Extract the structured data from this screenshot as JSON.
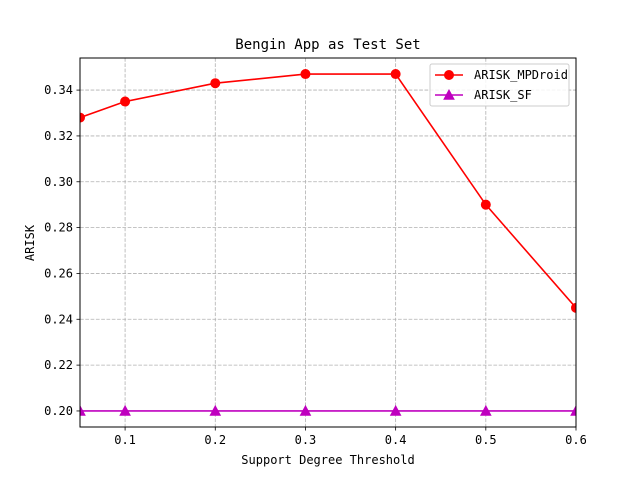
{
  "chart_data": {
    "type": "line",
    "title": "Bengin App as Test Set",
    "xlabel": "Support Degree Threshold",
    "ylabel": "ARISK",
    "x": [
      0.05,
      0.1,
      0.2,
      0.3,
      0.4,
      0.5,
      0.6
    ],
    "xlim": [
      0.05,
      0.6
    ],
    "ylim": [
      0.193,
      0.354
    ],
    "xticks": [
      0.1,
      0.2,
      0.3,
      0.4,
      0.5,
      0.6
    ],
    "xtick_labels": [
      "0.1",
      "0.2",
      "0.3",
      "0.4",
      "0.5",
      "0.6"
    ],
    "yticks": [
      0.2,
      0.22,
      0.24,
      0.26,
      0.28,
      0.3,
      0.32,
      0.34
    ],
    "ytick_labels": [
      "0.20",
      "0.22",
      "0.24",
      "0.26",
      "0.28",
      "0.30",
      "0.32",
      "0.34"
    ],
    "grid": true,
    "legend_position": "top-right",
    "series": [
      {
        "name": "ARISK_MPDroid",
        "values": [
          0.328,
          0.335,
          0.343,
          0.347,
          0.347,
          0.29,
          0.245
        ],
        "color": "#ff0000",
        "marker": "circle"
      },
      {
        "name": "ARISK_SF",
        "values": [
          0.2,
          0.2,
          0.2,
          0.2,
          0.2,
          0.2,
          0.2
        ],
        "color": "#bf00bf",
        "marker": "triangle"
      }
    ]
  }
}
